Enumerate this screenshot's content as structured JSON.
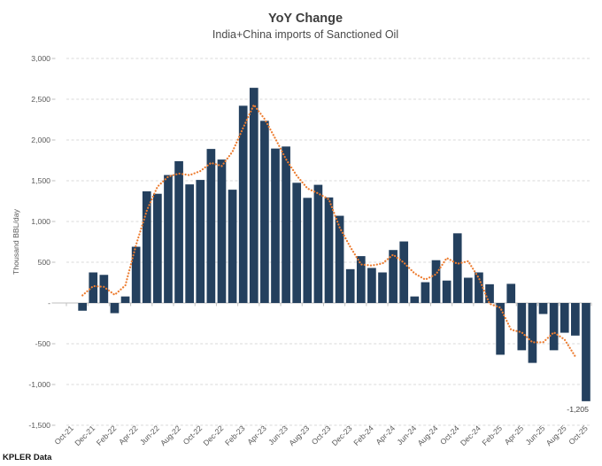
{
  "title": "YoY Change",
  "subtitle": "India+China imports of Sanctioned Oil",
  "source": "KPLER Data",
  "colors": {
    "bar": "#24405e",
    "ma_line": "#ed7d31",
    "gridline": "#d9d9d9",
    "axis_line": "#bfbfbf",
    "axis_text": "#595959",
    "title_text": "#3d3d3d",
    "annotation_text": "#404040",
    "background": "#ffffff"
  },
  "chart_data": {
    "type": "bar",
    "title": "YoY Change",
    "subtitle": "India+China imports of Sanctioned Oil",
    "xlabel": "",
    "ylabel": "Thousand BBL/day",
    "ylim": [
      -1500,
      3000
    ],
    "ytick_interval": 500,
    "ytick_values": [
      3000,
      2500,
      2000,
      1500,
      1000,
      500,
      0,
      -500,
      -1000,
      -1500
    ],
    "ytick_labels": [
      "3,000",
      "2,500",
      "2,000",
      "1,500",
      "1,000",
      "500",
      "-",
      "-500",
      "-1,000",
      "-1,500"
    ],
    "grid": "horizontal-dashed",
    "legend": "none",
    "x_tick_label_interval": 2,
    "categories": [
      "Oct-21",
      "Nov-21",
      "Dec-21",
      "Jan-22",
      "Feb-22",
      "Mar-22",
      "Apr-22",
      "May-22",
      "Jun-22",
      "Jul-22",
      "Aug-22",
      "Sep-22",
      "Oct-22",
      "Nov-22",
      "Dec-22",
      "Jan-23",
      "Feb-23",
      "Mar-23",
      "Apr-23",
      "May-23",
      "Jun-23",
      "Jul-23",
      "Aug-23",
      "Sep-23",
      "Oct-23",
      "Nov-23",
      "Dec-23",
      "Jan-24",
      "Feb-24",
      "Mar-24",
      "Apr-24",
      "May-24",
      "Jun-24",
      "Jul-24",
      "Aug-24",
      "Sep-24",
      "Oct-24",
      "Nov-24",
      "Dec-24",
      "Jan-25",
      "Feb-25",
      "Mar-25",
      "Apr-25",
      "May-25",
      "Jun-25",
      "Jul-25",
      "Aug-25",
      "Sep-25",
      "Oct-25"
    ],
    "series": [
      {
        "name": "YoY change",
        "type": "bar",
        "color": "#24405e",
        "values": [
          0,
          -95,
          375,
          345,
          -125,
          80,
          690,
          1370,
          1340,
          1570,
          1740,
          1455,
          1510,
          1890,
          1760,
          1390,
          2420,
          2640,
          2235,
          1895,
          1920,
          1475,
          1290,
          1450,
          1295,
          1070,
          415,
          575,
          430,
          375,
          650,
          755,
          80,
          255,
          525,
          275,
          855,
          310,
          375,
          230,
          -635,
          235,
          -580,
          -735,
          -135,
          -580,
          -365,
          -400,
          -1205
        ]
      },
      {
        "name": "3-month moving average",
        "type": "dotted-line",
        "color": "#ed7d31",
        "window": 3,
        "values": [
          null,
          93,
          208,
          198,
          100,
          215,
          713,
          1133,
          1427,
          1550,
          1588,
          1568,
          1618,
          1720,
          1680,
          1857,
          2150,
          2432,
          2257,
          2017,
          1763,
          1562,
          1405,
          1345,
          1272,
          927,
          687,
          473,
          460,
          485,
          593,
          495,
          363,
          287,
          352,
          552,
          480,
          513,
          305,
          -10,
          -57,
          -327,
          -360,
          -483,
          -483,
          -360,
          -448,
          -657,
          null
        ]
      }
    ],
    "annotations": [
      {
        "text": "-1,205",
        "category": "Oct-25",
        "position": "below-bar"
      }
    ]
  }
}
